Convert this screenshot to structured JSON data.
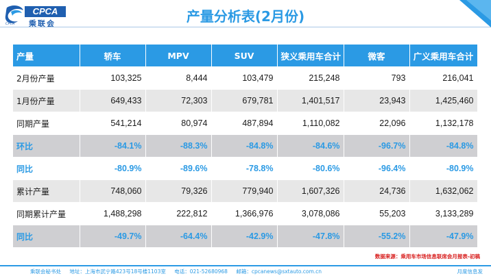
{
  "logo": {
    "badge": "CPCA",
    "cn_name": "乘联会",
    "sub": "CPCA"
  },
  "title": "产量分析表(2月份)",
  "table": {
    "headers": [
      "产量",
      "轿车",
      "MPV",
      "SUV",
      "狭义乘用车合计",
      "微客",
      "广义乘用车合计"
    ],
    "rows": [
      {
        "label": "2月份产量",
        "style": "white",
        "values": [
          "103,325",
          "8,444",
          "103,479",
          "215,248",
          "793",
          "216,041"
        ]
      },
      {
        "label": "1月份产量",
        "style": "gray",
        "values": [
          "649,433",
          "72,303",
          "679,781",
          "1,401,517",
          "23,943",
          "1,425,460"
        ]
      },
      {
        "label": "同期产量",
        "style": "white",
        "values": [
          "541,214",
          "80,974",
          "487,894",
          "1,110,082",
          "22,096",
          "1,132,178"
        ]
      },
      {
        "label": "环比",
        "style": "blue",
        "values": [
          "-84.1%",
          "-88.3%",
          "-84.8%",
          "-84.6%",
          "-96.7%",
          "-84.8%"
        ]
      },
      {
        "label": "同比",
        "style": "white-blue",
        "values": [
          "-80.9%",
          "-89.6%",
          "-78.8%",
          "-80.6%",
          "-96.4%",
          "-80.9%"
        ]
      },
      {
        "label": "累计产量",
        "style": "gray",
        "values": [
          "748,060",
          "79,326",
          "779,940",
          "1,607,326",
          "24,736",
          "1,632,062"
        ]
      },
      {
        "label": "同期累计产量",
        "style": "white",
        "values": [
          "1,488,298",
          "222,812",
          "1,366,976",
          "3,078,086",
          "55,203",
          "3,133,289"
        ]
      },
      {
        "label": "同比",
        "style": "blue",
        "values": [
          "-49.7%",
          "-64.4%",
          "-42.9%",
          "-47.8%",
          "-55.2%",
          "-47.9%"
        ]
      }
    ]
  },
  "source": "数据来源：乘用车市场信息联席会月报表-初稿",
  "footer": {
    "org": "乘联会秘书处",
    "address": "地址：上海市武宁路423号18号楼1103室",
    "phone": "电话：021-52680968",
    "email": "邮箱：cpcanews@sxtauto.com.cn",
    "right": "月度信息发"
  },
  "colors": {
    "accent": "#2b9ae4",
    "header_bg": "#2b9ae4",
    "highlight_row": "#cfcfd2",
    "source_red": "#d8201f"
  }
}
